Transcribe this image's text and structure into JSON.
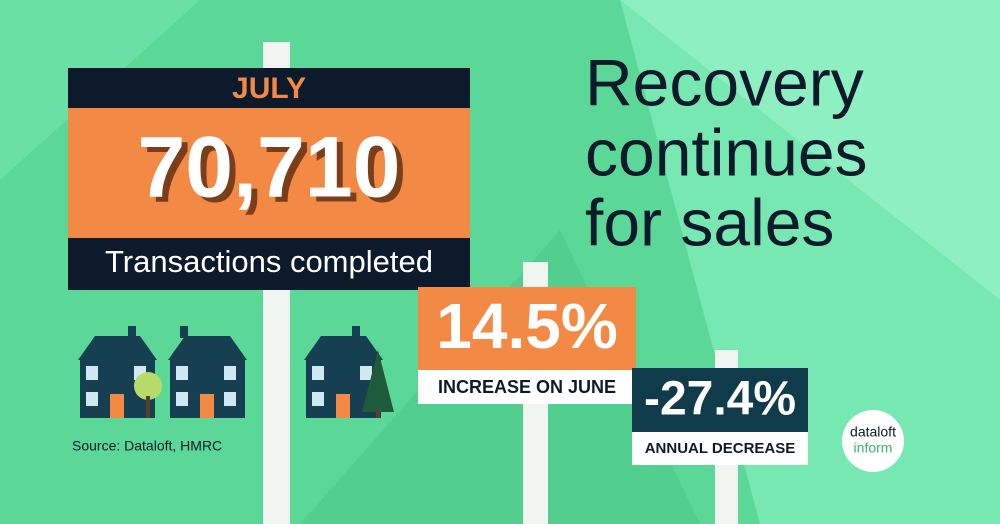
{
  "main_sign": {
    "month": "JULY",
    "figure": "70,710",
    "caption": "Transactions completed"
  },
  "headline": {
    "lines": [
      "Recovery",
      "continues",
      "for sales"
    ]
  },
  "monthly_sign": {
    "figure": "14.5%",
    "caption": "INCREASE ON JUNE"
  },
  "annual_sign": {
    "figure": "-27.4%",
    "caption": "ANNUAL DECREASE"
  },
  "source": "Source: Dataloft, HMRC",
  "logo": {
    "line1": "dataloft",
    "line2": "inform"
  }
}
